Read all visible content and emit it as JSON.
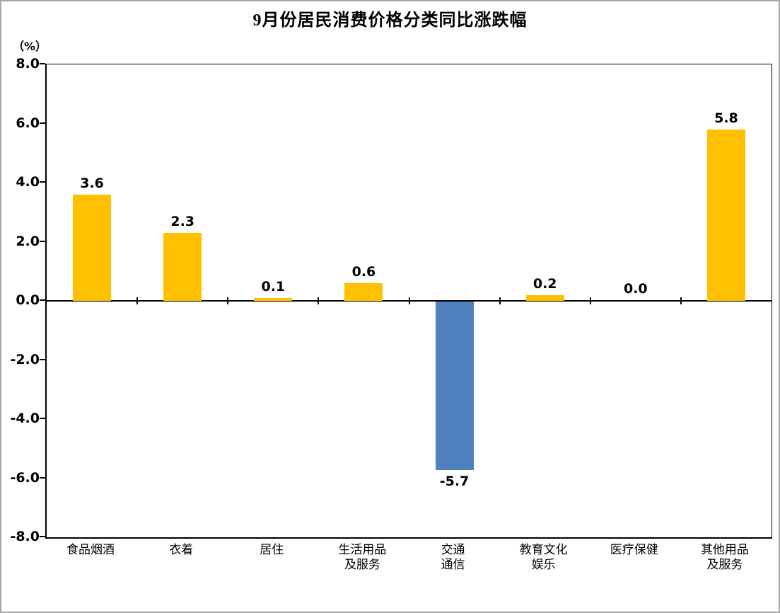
{
  "title": "9月份居民消费价格分类同比涨跌幅",
  "axis_unit_label": "（%）",
  "chart_data": {
    "type": "bar",
    "title": "9月份居民消费价格分类同比涨跌幅",
    "xlabel": "",
    "ylabel": "（%）",
    "categories": [
      "食品烟酒",
      "衣着",
      "居住",
      "生活用品\n及服务",
      "交通\n通信",
      "教育文化\n娱乐",
      "医疗保健",
      "其他用品\n及服务"
    ],
    "values": [
      3.6,
      2.3,
      0.1,
      0.6,
      -5.7,
      0.2,
      0.0,
      5.8
    ],
    "data_labels": [
      "3.6",
      "2.3",
      "0.1",
      "0.6",
      "-5.7",
      "0.2",
      "0.0",
      "5.8"
    ],
    "ylim": [
      -8.0,
      8.0
    ],
    "ytick_step": 2.0,
    "yticks": [
      "8.0",
      "6.0",
      "4.0",
      "2.0",
      "0.0",
      "-2.0",
      "-4.0",
      "-6.0",
      "-8.0"
    ],
    "grid": false,
    "legend": "none",
    "colors": {
      "positive_bar": "#FFC000",
      "negative_bar": "#4E81BD",
      "axis": "#000000",
      "frame_border": "#A6A6A6"
    }
  }
}
